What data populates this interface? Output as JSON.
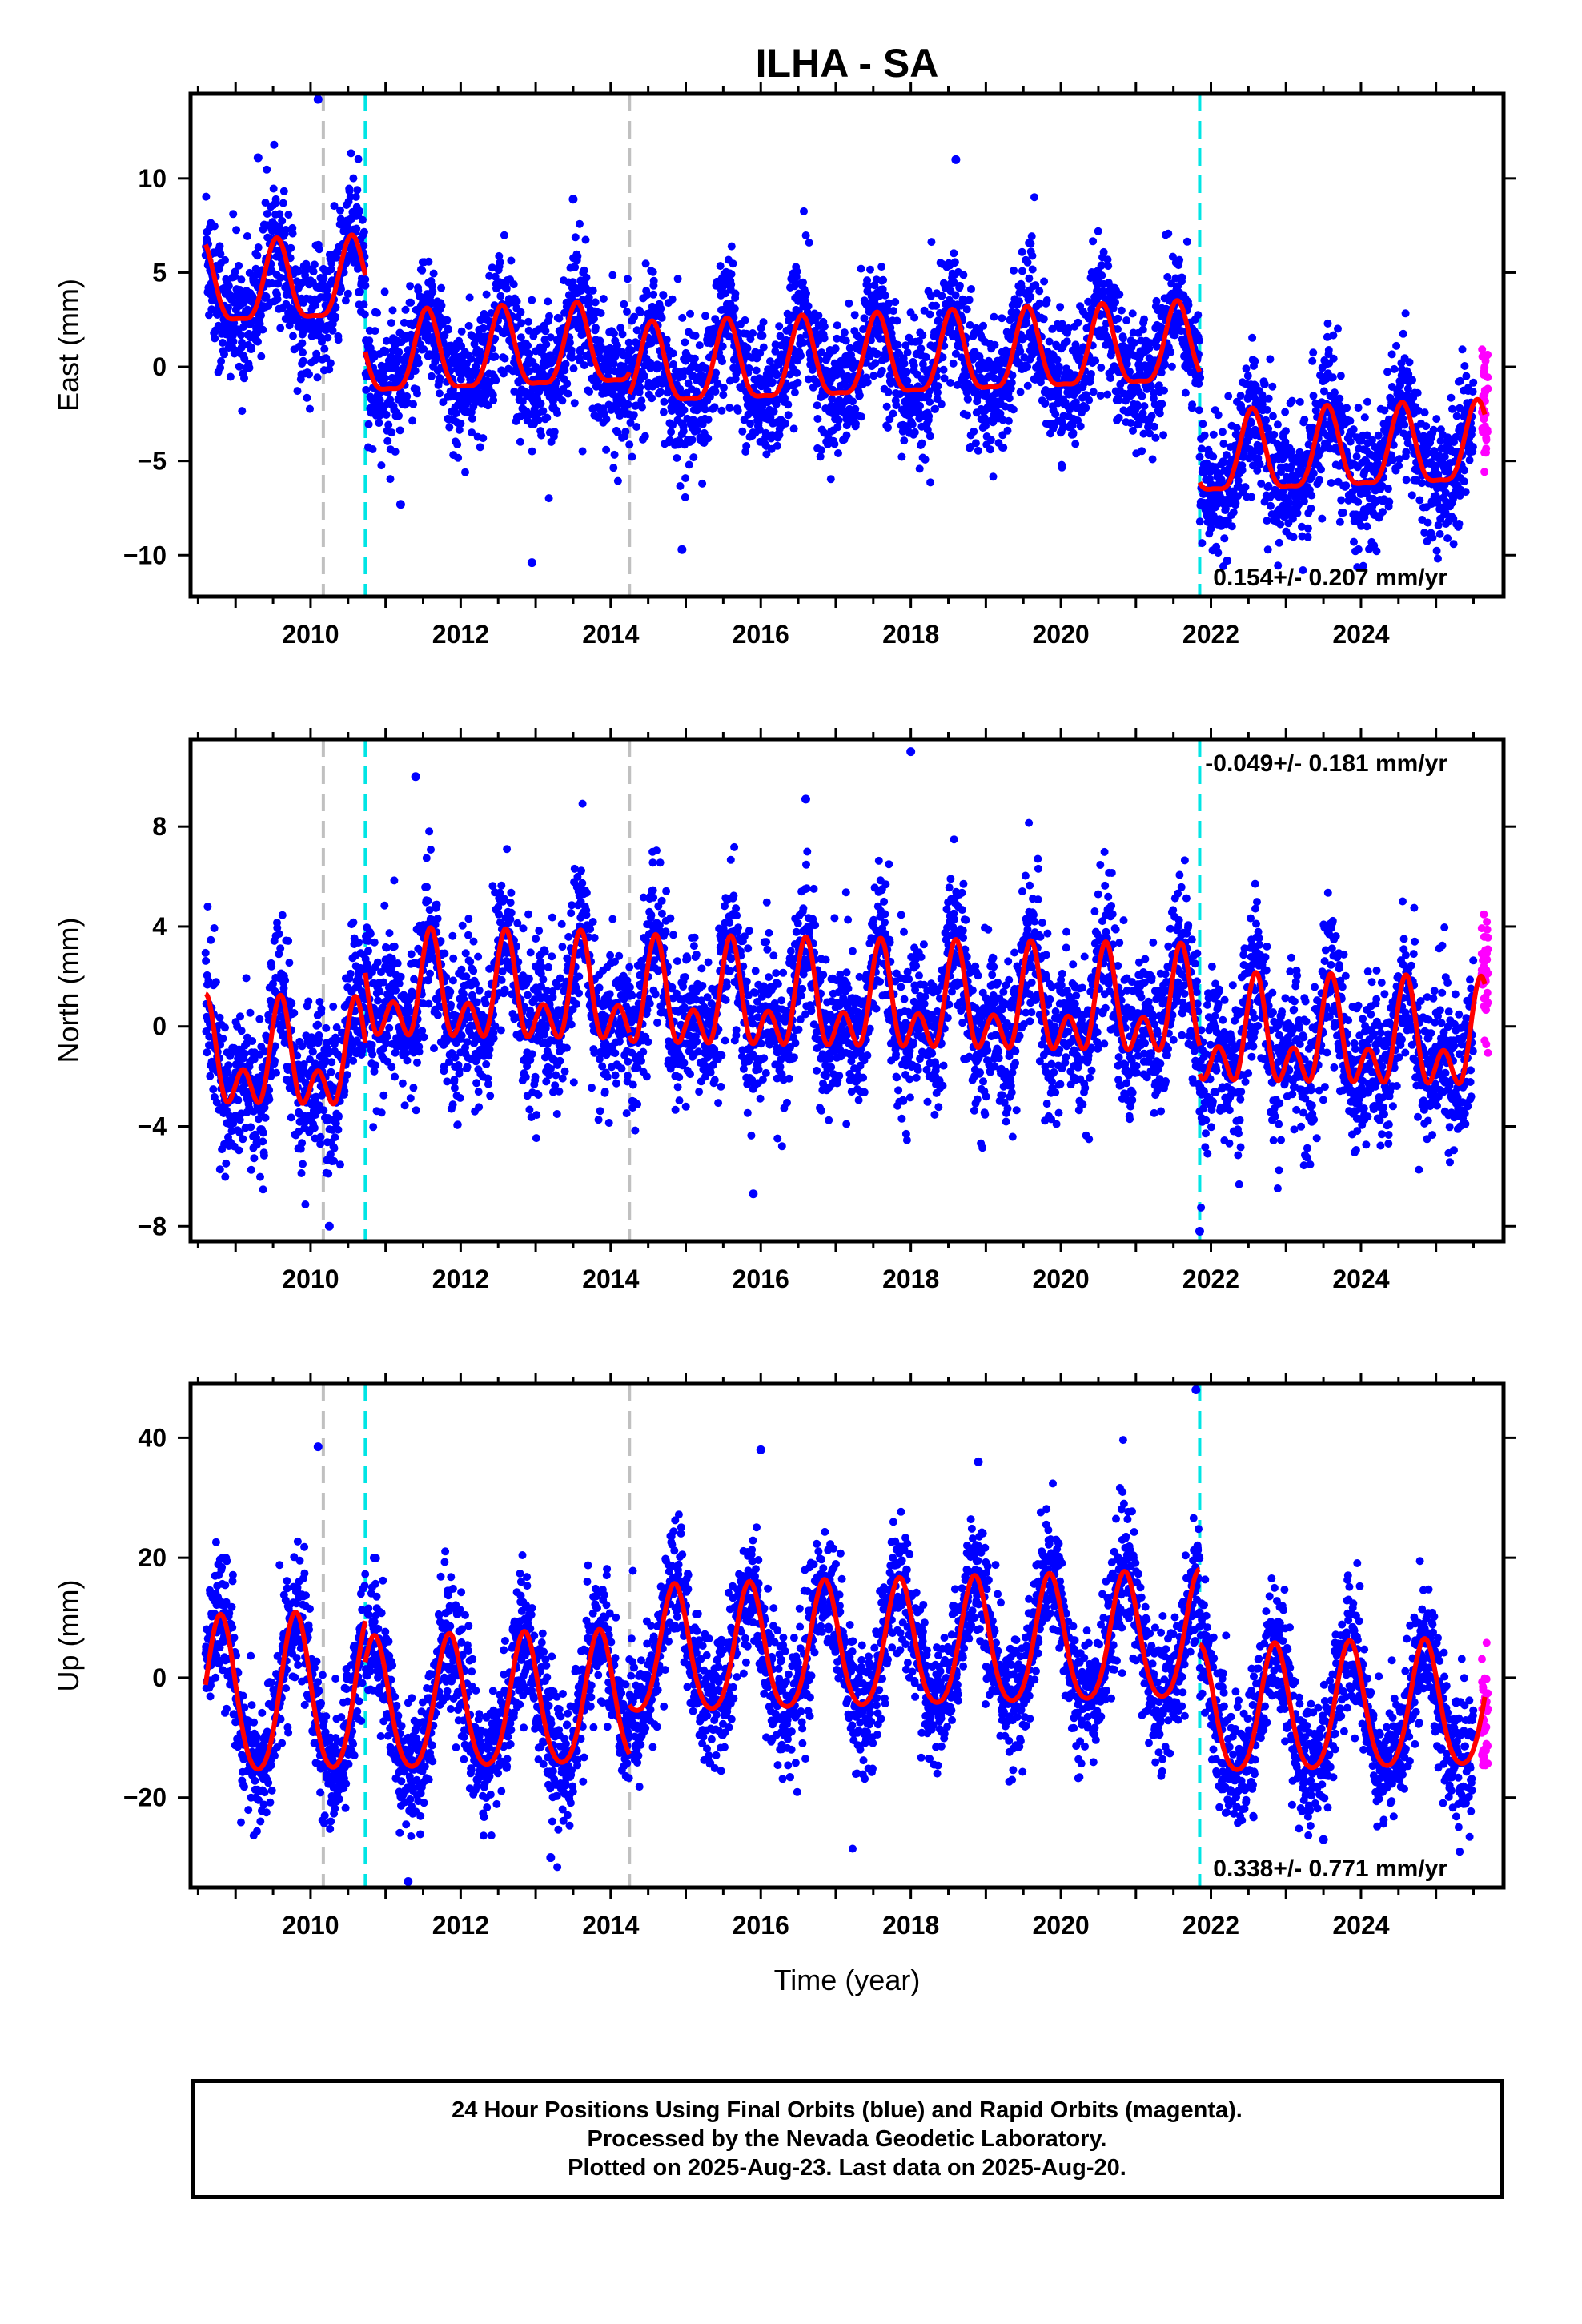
{
  "title": "ILHA - SA",
  "caption": {
    "line1": "24 Hour Positions Using Final Orbits (blue) and Rapid Orbits (magenta).",
    "line2": "Processed by the Nevada Geodetic Laboratory.",
    "line3": "Plotted on 2025-Aug-23. Last data on 2025-Aug-20."
  },
  "colors": {
    "final_points": "#0000ff",
    "rapid_points": "#ff00ff",
    "fit": "#ff0000",
    "antenna_change": "#00e5e5",
    "other_event": "#c0c0c0",
    "frame": "#000000"
  },
  "chart_data": [
    {
      "type": "scatter",
      "panel": "east",
      "ylabel": "East (mm)",
      "xlabel": "",
      "xlim": [
        2008.4,
        2025.9
      ],
      "ylim": [
        -12.2,
        14.5
      ],
      "xticks": [
        2010,
        2012,
        2014,
        2016,
        2018,
        2020,
        2022,
        2024
      ],
      "yticks": [
        -10,
        -5,
        0,
        5,
        10
      ],
      "rate_label": "0.154+/- 0.207 mm/yr",
      "rate_position": "bottom-right",
      "event_lines": [
        {
          "x": 2010.17,
          "kind": "gray"
        },
        {
          "x": 2010.73,
          "kind": "cyan"
        },
        {
          "x": 2014.25,
          "kind": "gray"
        },
        {
          "x": 2021.85,
          "kind": "cyan"
        }
      ],
      "fit_segments": [
        {
          "t0": 2008.6,
          "t1": 2010.73,
          "offset": 4.0,
          "rate": 0.154,
          "annual_amp": 2.1,
          "annual_phase": 2009.55,
          "semi_amp": 0.6
        },
        {
          "t0": 2010.73,
          "t1": 2014.25,
          "offset": 0.3,
          "rate": 0.154,
          "annual_amp": 2.1,
          "annual_phase": 2011.55,
          "semi_amp": 0.6
        },
        {
          "t0": 2014.25,
          "t1": 2021.85,
          "offset": -0.3,
          "rate": 0.154,
          "annual_amp": 2.1,
          "annual_phase": 2014.55,
          "semi_amp": 0.6
        },
        {
          "t0": 2021.85,
          "t1": 2025.65,
          "offset": -5.0,
          "rate": 0.154,
          "annual_amp": 2.1,
          "annual_phase": 2022.55,
          "semi_amp": 0.6
        }
      ],
      "scatter_sigma": 1.7,
      "rapid_range": [
        2025.5,
        2025.65
      ],
      "outliers": [
        [
          2010.1,
          14.2
        ],
        [
          2009.3,
          11.1
        ],
        [
          2018.6,
          11.0
        ],
        [
          2012.95,
          -10.4
        ],
        [
          2014.95,
          -9.7
        ],
        [
          2011.2,
          -7.3
        ],
        [
          2013.5,
          8.9
        ]
      ]
    },
    {
      "type": "scatter",
      "panel": "north",
      "ylabel": "North (mm)",
      "xlabel": "",
      "xlim": [
        2008.4,
        2025.9
      ],
      "ylim": [
        -8.6,
        11.5
      ],
      "xticks": [
        2010,
        2012,
        2014,
        2016,
        2018,
        2020,
        2022,
        2024
      ],
      "yticks": [
        -8,
        -4,
        0,
        4,
        8
      ],
      "rate_label": "-0.049+/- 0.181 mm/yr",
      "rate_position": "top-right",
      "event_lines": [
        {
          "x": 2010.17,
          "kind": "gray"
        },
        {
          "x": 2010.73,
          "kind": "cyan"
        },
        {
          "x": 2014.25,
          "kind": "gray"
        },
        {
          "x": 2021.85,
          "kind": "cyan"
        }
      ],
      "fit_segments": [
        {
          "t0": 2008.6,
          "t1": 2010.73,
          "offset": -1.5,
          "rate": -0.049,
          "annual_amp": 1.5,
          "annual_phase": 2009.6,
          "semi_amp": 1.3
        },
        {
          "t0": 2010.73,
          "t1": 2014.25,
          "offset": 1.2,
          "rate": -0.049,
          "annual_amp": 1.5,
          "annual_phase": 2011.6,
          "semi_amp": 1.3
        },
        {
          "t0": 2014.25,
          "t1": 2021.85,
          "offset": 0.9,
          "rate": -0.049,
          "annual_amp": 1.5,
          "annual_phase": 2014.6,
          "semi_amp": 1.3
        },
        {
          "t0": 2021.85,
          "t1": 2025.65,
          "offset": -0.6,
          "rate": -0.049,
          "annual_amp": 1.5,
          "annual_phase": 2022.6,
          "semi_amp": 1.3
        }
      ],
      "scatter_sigma": 1.5,
      "rapid_range": [
        2025.5,
        2025.65
      ],
      "outliers": [
        [
          2018.0,
          11.0
        ],
        [
          2016.6,
          9.1
        ],
        [
          2011.4,
          10.0
        ],
        [
          2021.85,
          -8.2
        ],
        [
          2010.25,
          -8.0
        ],
        [
          2015.9,
          -6.7
        ]
      ]
    },
    {
      "type": "scatter",
      "panel": "up",
      "ylabel": "Up (mm)",
      "xlabel": "Time (year)",
      "xlim": [
        2008.4,
        2025.9
      ],
      "ylim": [
        -35,
        49
      ],
      "xticks": [
        2010,
        2012,
        2014,
        2016,
        2018,
        2020,
        2022,
        2024
      ],
      "yticks": [
        -20,
        0,
        20,
        40
      ],
      "rate_label": "0.338+/- 0.771 mm/yr",
      "rate_position": "bottom-right",
      "event_lines": [
        {
          "x": 2010.17,
          "kind": "gray"
        },
        {
          "x": 2010.73,
          "kind": "cyan"
        },
        {
          "x": 2014.25,
          "kind": "gray"
        },
        {
          "x": 2021.85,
          "kind": "cyan"
        }
      ],
      "fit_segments": [
        {
          "t0": 2008.6,
          "t1": 2010.73,
          "offset": -4.0,
          "rate": 0.338,
          "annual_amp": 13.0,
          "annual_phase": 2009.8,
          "semi_amp": 1.5
        },
        {
          "t0": 2010.73,
          "t1": 2014.25,
          "offset": -5.5,
          "rate": 0.338,
          "annual_amp": 11.0,
          "annual_phase": 2011.85,
          "semi_amp": 1.5
        },
        {
          "t0": 2014.25,
          "t1": 2021.85,
          "offset": 3.5,
          "rate": 0.338,
          "annual_amp": 10.5,
          "annual_phase": 2014.85,
          "semi_amp": 1.5
        },
        {
          "t0": 2021.85,
          "t1": 2025.65,
          "offset": -6.5,
          "rate": 0.338,
          "annual_amp": 10.5,
          "annual_phase": 2022.85,
          "semi_amp": 1.5
        }
      ],
      "scatter_sigma": 5.2,
      "rapid_range": [
        2025.5,
        2025.65
      ],
      "outliers": [
        [
          2021.8,
          48.0
        ],
        [
          2010.1,
          38.5
        ],
        [
          2016.0,
          38.0
        ],
        [
          2018.9,
          36.0
        ],
        [
          2011.3,
          -34.0
        ],
        [
          2013.2,
          -30.0
        ],
        [
          2023.5,
          -27.0
        ]
      ]
    }
  ]
}
